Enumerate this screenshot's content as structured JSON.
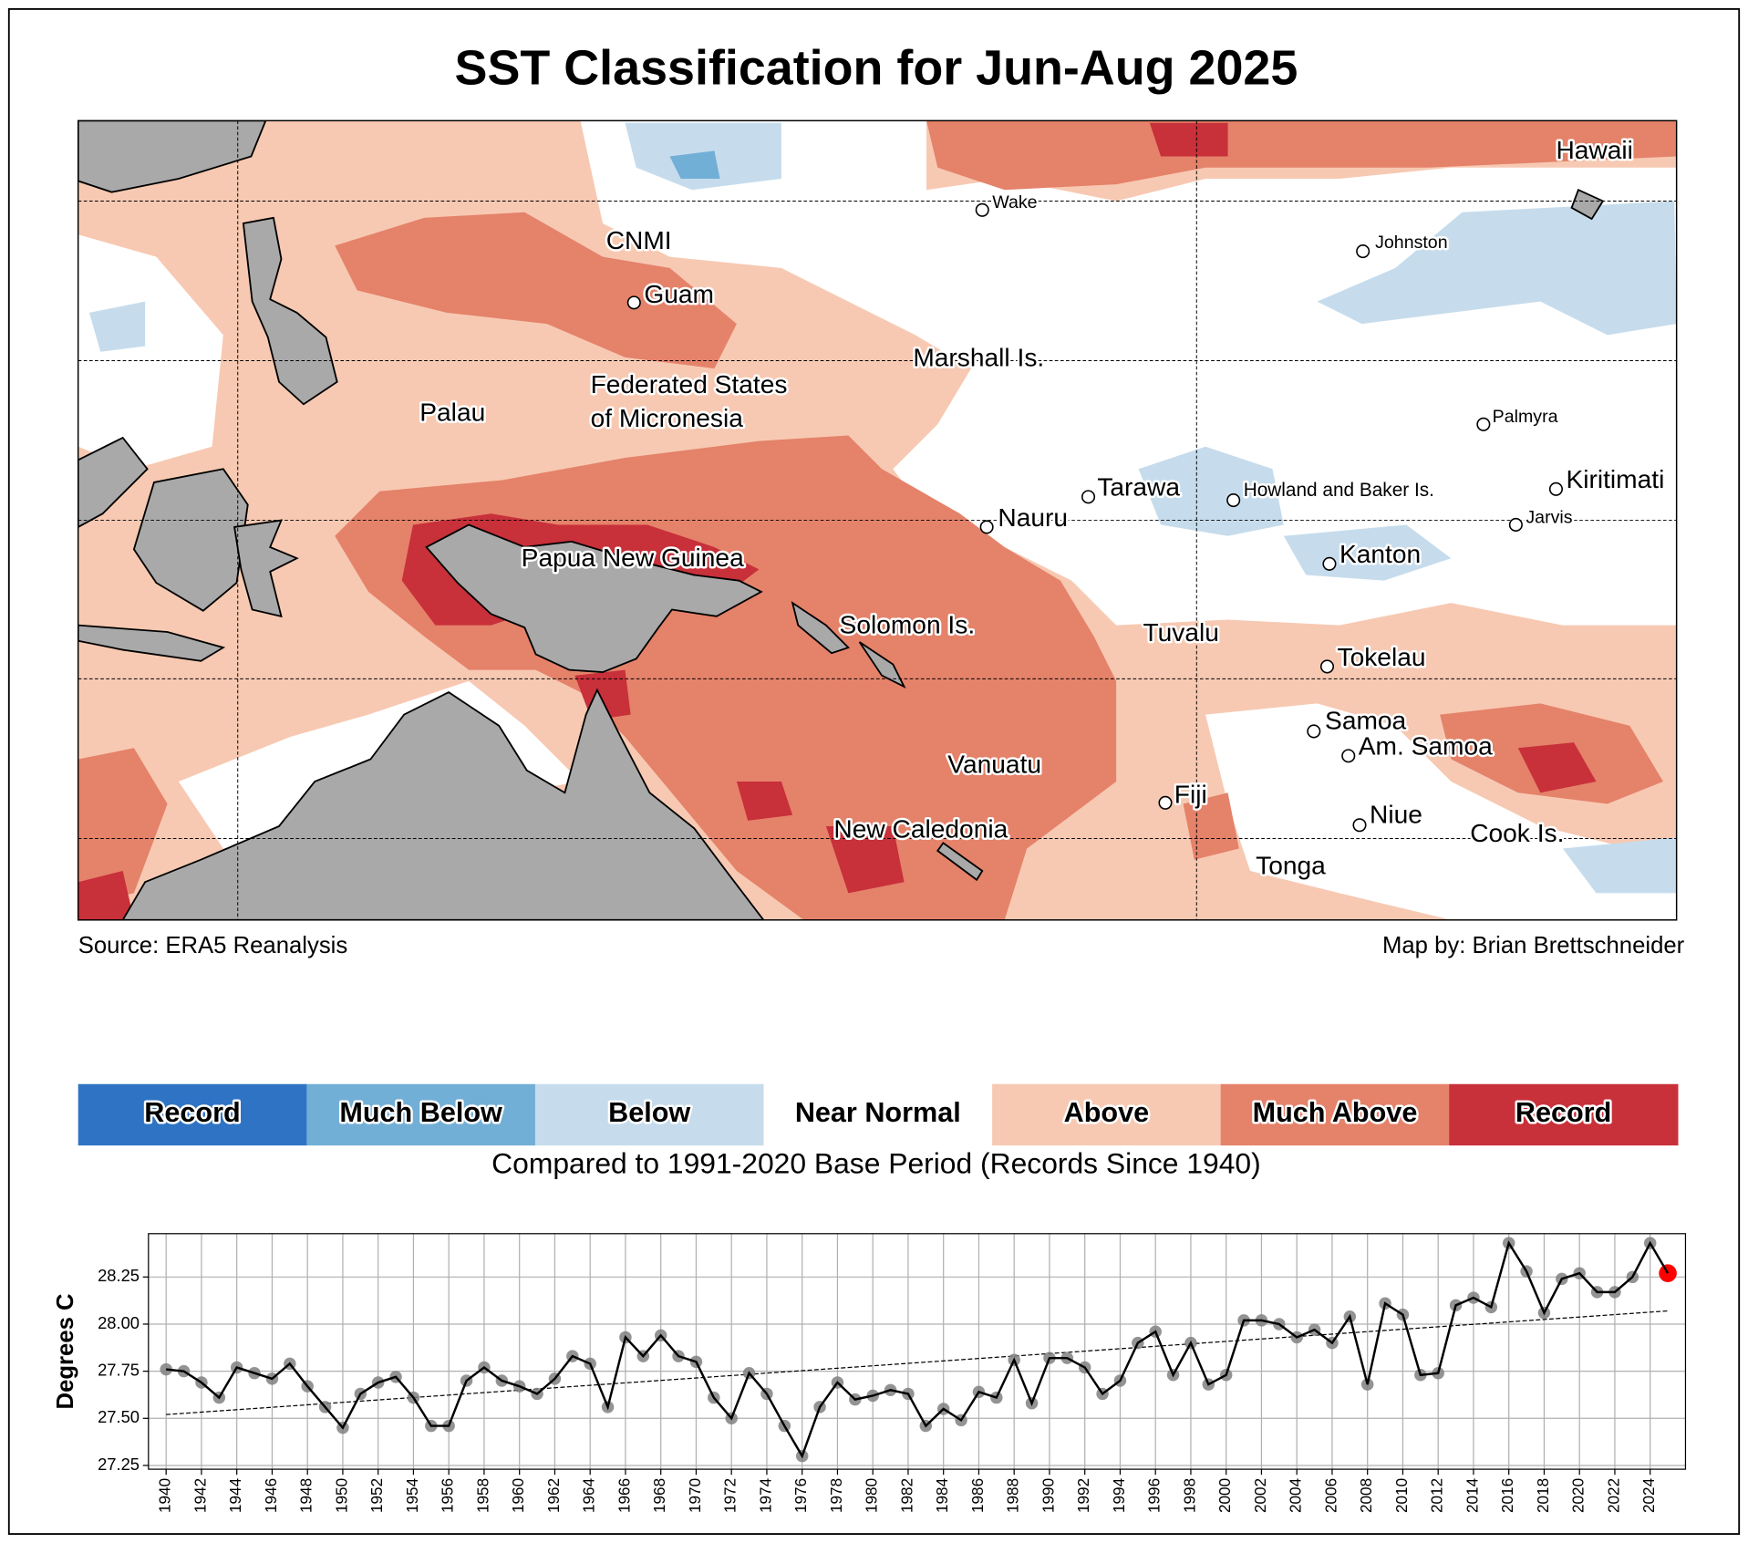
{
  "title": "SST Classification for Jun-Aug 2025",
  "map": {
    "labels": [
      "Hawaii",
      "Wake",
      "Johnston",
      "CNMI",
      "Guam",
      "Marshall Is.",
      "Federated States",
      "of Micronesia",
      "Palau",
      "Palmyra",
      "Kiritimati",
      "Tarawa",
      "Howland and Baker Is.",
      "Nauru",
      "Jarvis",
      "Kanton",
      "Papua New Guinea",
      "Solomon Is.",
      "Tuvalu",
      "Tokelau",
      "Samoa",
      "Am. Samoa",
      "Vanuatu",
      "Fiji",
      "Niue",
      "New Caledonia",
      "Cook Is.",
      "Tonga"
    ],
    "source": "Source: ERA5 Reanalysis",
    "credit": "Map by: Brian Brettschneider"
  },
  "legend": {
    "items": [
      {
        "label": "Record",
        "color": "#2f74c4"
      },
      {
        "label": "Much Below",
        "color": "#72afd6"
      },
      {
        "label": "Below",
        "color": "#c6dcec"
      },
      {
        "label": "Near Normal",
        "color": "#ffffff"
      },
      {
        "label": "Above",
        "color": "#f7c9b2"
      },
      {
        "label": "Much Above",
        "color": "#e5826a"
      },
      {
        "label": "Record",
        "color": "#c8303a"
      }
    ],
    "caption": "Compared to 1991-2020 Base Period   (Records Since 1940)"
  },
  "chart_data": {
    "type": "line",
    "y_label": "Degrees C",
    "x": [
      1940,
      1941,
      1942,
      1943,
      1944,
      1945,
      1946,
      1947,
      1948,
      1949,
      1950,
      1951,
      1952,
      1953,
      1954,
      1955,
      1956,
      1957,
      1958,
      1959,
      1960,
      1961,
      1962,
      1963,
      1964,
      1965,
      1966,
      1967,
      1968,
      1969,
      1970,
      1971,
      1972,
      1973,
      1974,
      1975,
      1976,
      1977,
      1978,
      1979,
      1980,
      1981,
      1982,
      1983,
      1984,
      1985,
      1986,
      1987,
      1988,
      1989,
      1990,
      1991,
      1992,
      1993,
      1994,
      1995,
      1996,
      1997,
      1998,
      1999,
      2000,
      2001,
      2002,
      2003,
      2004,
      2005,
      2006,
      2007,
      2008,
      2009,
      2010,
      2011,
      2012,
      2013,
      2014,
      2015,
      2016,
      2017,
      2018,
      2019,
      2020,
      2021,
      2022,
      2023,
      2024,
      2025
    ],
    "values": [
      27.76,
      27.75,
      27.69,
      27.61,
      27.77,
      27.74,
      27.71,
      27.79,
      27.67,
      27.56,
      27.45,
      27.63,
      27.69,
      27.72,
      27.61,
      27.46,
      27.46,
      27.7,
      27.77,
      27.7,
      27.67,
      27.63,
      27.71,
      27.83,
      27.79,
      27.56,
      27.93,
      27.83,
      27.94,
      27.83,
      27.8,
      27.61,
      27.5,
      27.74,
      27.63,
      27.46,
      27.3,
      27.56,
      27.69,
      27.6,
      27.62,
      27.65,
      27.63,
      27.46,
      27.55,
      27.49,
      27.64,
      27.61,
      27.81,
      27.58,
      27.82,
      27.82,
      27.77,
      27.63,
      27.7,
      27.9,
      27.96,
      27.73,
      27.9,
      27.68,
      27.73,
      28.02,
      28.02,
      28.0,
      27.93,
      27.97,
      27.9,
      28.04,
      27.68,
      28.11,
      28.05,
      27.73,
      27.74,
      28.1,
      28.14,
      28.09,
      28.43,
      28.28,
      28.06,
      28.24,
      28.27,
      28.17,
      28.17,
      28.25,
      28.43,
      28.27
    ],
    "color": "#000000",
    "marker_color": "#808080",
    "highlight_color": "#ff0000",
    "trend": {
      "x": [
        1940,
        2025
      ],
      "values": [
        27.52,
        28.07
      ],
      "color": "#000000"
    },
    "xlim": [
      1939,
      2026
    ],
    "ylim": [
      27.23,
      28.48
    ],
    "xticks": [
      1940,
      1942,
      1944,
      1946,
      1948,
      1950,
      1952,
      1954,
      1956,
      1958,
      1960,
      1962,
      1964,
      1966,
      1968,
      1970,
      1972,
      1974,
      1976,
      1978,
      1980,
      1982,
      1984,
      1986,
      1988,
      1990,
      1992,
      1994,
      1996,
      1998,
      2000,
      2002,
      2004,
      2006,
      2008,
      2010,
      2012,
      2014,
      2016,
      2018,
      2020,
      2022,
      2024
    ],
    "yticks": [
      27.25,
      {
        "value": 27.5,
        "label": "27.50"
      },
      27.75,
      {
        "value": 28,
        "label": "28.00"
      },
      28.25
    ],
    "grid": true
  }
}
